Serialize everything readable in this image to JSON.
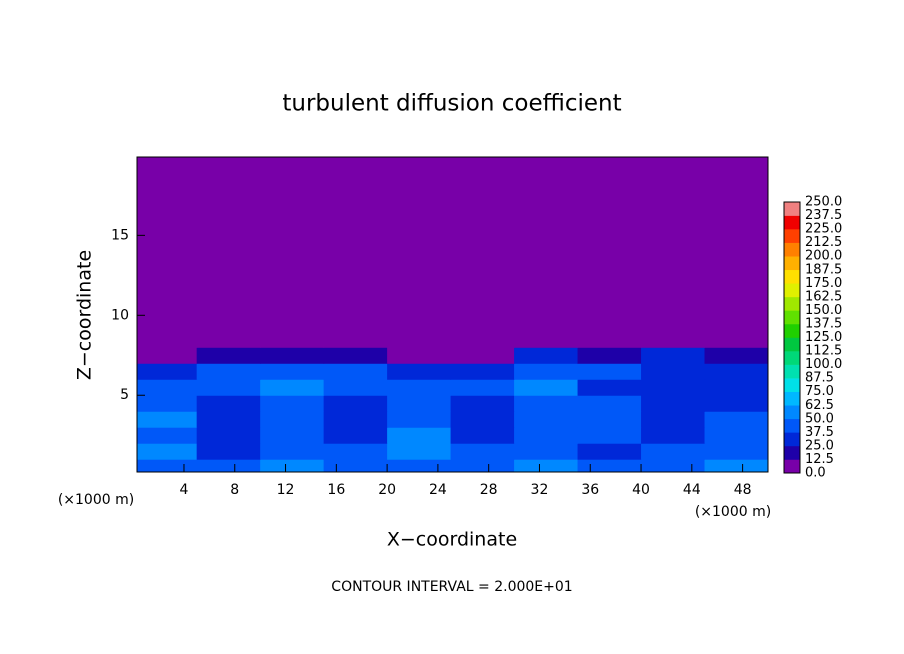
{
  "chart_data": {
    "type": "heatmap",
    "title": "turbulent diffusion coefficient",
    "x_label": "X−coordinate",
    "y_label": "Z−coordinate",
    "x_unit": "(×1000 m)",
    "y_unit": "(×1000 m)",
    "footnote": "CONTOUR INTERVAL = 2.000E+01",
    "xlim": [
      0.3,
      50
    ],
    "ylim": [
      0.2,
      19.9
    ],
    "xticks": [
      4,
      8,
      12,
      16,
      20,
      24,
      28,
      32,
      36,
      40,
      44,
      48
    ],
    "yticks": [
      5,
      10,
      15
    ],
    "xbins": [
      0,
      5,
      10,
      15,
      20,
      25,
      30,
      35,
      40,
      45,
      50
    ],
    "ybins": [
      0,
      1,
      2,
      3,
      4,
      5,
      6,
      7,
      8,
      20
    ],
    "z": [
      [
        45,
        40,
        50,
        45,
        40,
        45,
        50,
        45,
        40,
        50
      ],
      [
        50,
        35,
        40,
        40,
        55,
        40,
        40,
        35,
        40,
        45
      ],
      [
        45,
        30,
        45,
        35,
        50,
        35,
        40,
        45,
        35,
        40
      ],
      [
        50,
        30,
        40,
        35,
        45,
        35,
        40,
        40,
        30,
        45
      ],
      [
        45,
        35,
        45,
        35,
        40,
        35,
        45,
        40,
        30,
        35
      ],
      [
        40,
        45,
        50,
        45,
        40,
        45,
        50,
        35,
        30,
        30
      ],
      [
        35,
        45,
        40,
        45,
        30,
        25,
        45,
        40,
        35,
        25
      ],
      [
        5,
        15,
        20,
        15,
        5,
        10,
        30,
        15,
        25,
        20
      ],
      [
        0,
        0,
        0,
        0,
        0,
        0,
        0,
        0,
        0,
        0
      ]
    ],
    "levels": [
      {
        "value": 0,
        "label": "0.0"
      },
      12.5,
      {
        "value": 25,
        "label": "25.0"
      },
      37.5,
      {
        "value": 50,
        "label": "50.0"
      },
      62.5,
      {
        "value": 75,
        "label": "75.0"
      },
      87.5,
      {
        "value": 100,
        "label": "100.0"
      },
      112.5,
      {
        "value": 125,
        "label": "125.0"
      },
      137.5,
      {
        "value": 150,
        "label": "150.0"
      },
      162.5,
      {
        "value": 175,
        "label": "175.0"
      },
      187.5,
      {
        "value": 200,
        "label": "200.0"
      },
      212.5,
      {
        "value": 225,
        "label": "225.0"
      },
      237.5,
      {
        "value": 250,
        "label": "250.0"
      }
    ],
    "level_colors": [
      "#7800a8",
      "#1e00a8",
      "#0028d8",
      "#0058f8",
      "#0088ff",
      "#00b8ff",
      "#00e0e8",
      "#00e0b0",
      "#00d878",
      "#00c840",
      "#20d000",
      "#60e000",
      "#a0e800",
      "#e0f000",
      "#ffe000",
      "#ffb000",
      "#ff8000",
      "#ff4000",
      "#f00000",
      "#f08080"
    ]
  }
}
